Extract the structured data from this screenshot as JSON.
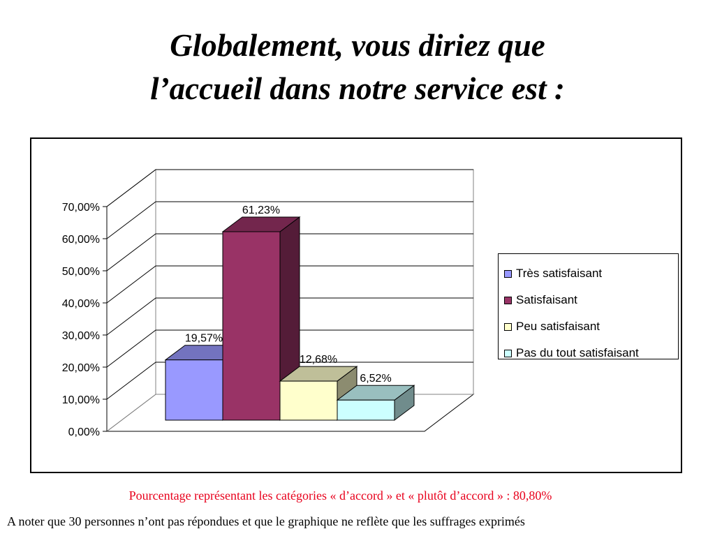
{
  "title": {
    "line1": "Globalement, vous diriez que",
    "line2": "l’accueil dans notre service est :"
  },
  "chart_data": {
    "type": "bar",
    "style": "3d-clustered-column",
    "categories": [
      "Très satisfaisant",
      "Satisfaisant",
      "Peu satisfaisant",
      "Pas du tout satisfaisant"
    ],
    "values": [
      19.57,
      61.23,
      12.68,
      6.52
    ],
    "data_labels": [
      "19,57%",
      "61,23%",
      "12,68%",
      "6,52%"
    ],
    "colors": [
      "#9999ff",
      "#993366",
      "#ffffcc",
      "#ccffff"
    ],
    "ylim": [
      0,
      70
    ],
    "yticks": [
      0,
      10,
      20,
      30,
      40,
      50,
      60,
      70
    ],
    "ytick_labels": [
      "0,00%",
      "10,00%",
      "20,00%",
      "30,00%",
      "40,00%",
      "50,00%",
      "60,00%",
      "70,00%"
    ],
    "grid": true,
    "legend_position": "right",
    "legend": [
      "Très satisfaisant",
      "Satisfaisant",
      "Peu satisfaisant",
      "Pas du tout satisfaisant"
    ]
  },
  "notes": {
    "red": "Pourcentage représentant les catégories « d’accord » et « plutôt d’accord » : 80,80%",
    "black": "A noter que 30 personnes n’ont pas répondues et que le graphique ne reflète que les suffrages exprimés"
  }
}
